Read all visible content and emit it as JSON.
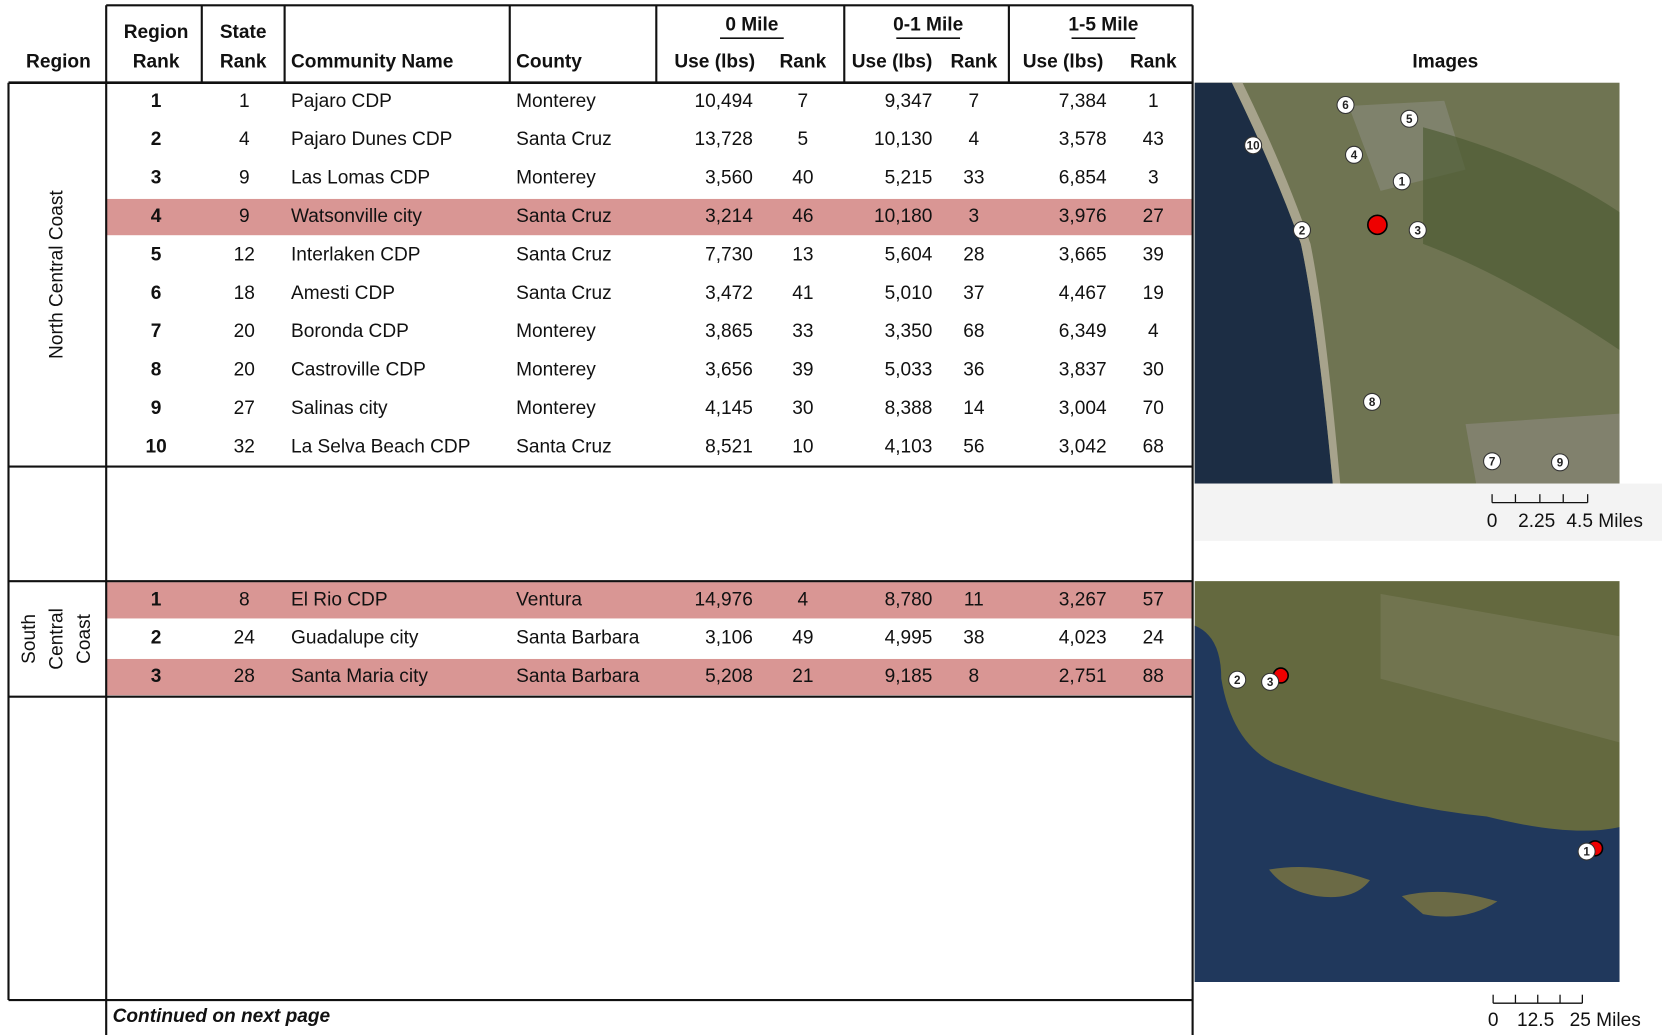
{
  "header": {
    "region": "Region",
    "region_rank": [
      "Region",
      "Rank"
    ],
    "state_rank": [
      "State",
      "Rank"
    ],
    "community": "Community Name",
    "county": "County",
    "groups": [
      "0 Mile",
      "0-1 Mile",
      "1-5 Mile"
    ],
    "use": "Use (lbs)",
    "rank": "Rank",
    "images": "Images"
  },
  "sections": [
    {
      "region": [
        "North Central Coast"
      ],
      "highlighted_rows": [
        3
      ],
      "rows": [
        [
          "1",
          "1",
          "Pajaro CDP",
          "Monterey",
          "10,494",
          "7",
          "9,347",
          "7",
          "7,384",
          "1"
        ],
        [
          "2",
          "4",
          "Pajaro Dunes CDP",
          "Santa Cruz",
          "13,728",
          "5",
          "10,130",
          "4",
          "3,578",
          "43"
        ],
        [
          "3",
          "9",
          "Las Lomas CDP",
          "Monterey",
          "3,560",
          "40",
          "5,215",
          "33",
          "6,854",
          "3"
        ],
        [
          "4",
          "9",
          "Watsonville city",
          "Santa Cruz",
          "3,214",
          "46",
          "10,180",
          "3",
          "3,976",
          "27"
        ],
        [
          "5",
          "12",
          "Interlaken CDP",
          "Santa Cruz",
          "7,730",
          "13",
          "5,604",
          "28",
          "3,665",
          "39"
        ],
        [
          "6",
          "18",
          "Amesti CDP",
          "Santa Cruz",
          "3,472",
          "41",
          "5,010",
          "37",
          "4,467",
          "19"
        ],
        [
          "7",
          "20",
          "Boronda CDP",
          "Monterey",
          "3,865",
          "33",
          "3,350",
          "68",
          "6,349",
          "4"
        ],
        [
          "8",
          "20",
          "Castroville CDP",
          "Monterey",
          "3,656",
          "39",
          "5,033",
          "36",
          "3,837",
          "30"
        ],
        [
          "9",
          "27",
          "Salinas city",
          "Monterey",
          "4,145",
          "30",
          "8,388",
          "14",
          "3,004",
          "70"
        ],
        [
          "10",
          "32",
          "La Selva Beach CDP",
          "Santa Cruz",
          "8,521",
          "10",
          "4,103",
          "56",
          "3,042",
          "68"
        ]
      ],
      "map": {
        "markers": [
          "6",
          "5",
          "10",
          "4",
          "1",
          "2",
          "3",
          "8",
          "7",
          "9"
        ],
        "scale": [
          "0",
          "2.25",
          "4.5 Miles"
        ]
      }
    },
    {
      "region": [
        "South",
        "Central",
        "Coast"
      ],
      "highlighted_rows": [
        0,
        2
      ],
      "rows": [
        [
          "1",
          "8",
          "El Rio CDP",
          "Ventura",
          "14,976",
          "4",
          "8,780",
          "11",
          "3,267",
          "57"
        ],
        [
          "2",
          "24",
          "Guadalupe city",
          "Santa Barbara",
          "3,106",
          "49",
          "4,995",
          "38",
          "4,023",
          "24"
        ],
        [
          "3",
          "28",
          "Santa Maria city",
          "Santa Barbara",
          "5,208",
          "21",
          "9,185",
          "8",
          "2,751",
          "88"
        ]
      ],
      "map": {
        "markers": [
          "2",
          "3",
          "1"
        ],
        "scale": [
          "0",
          "12.5",
          "25 Miles"
        ]
      }
    }
  ],
  "footer": "Continued on next page"
}
